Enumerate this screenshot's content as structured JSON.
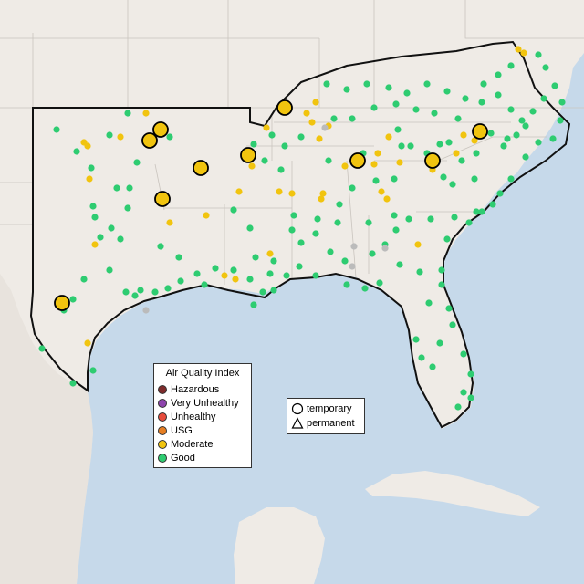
{
  "legend": {
    "title": "Air Quality Index",
    "categories": [
      {
        "label": "Hazardous",
        "color": "#7e2b2b"
      },
      {
        "label": "Very Unhealthy",
        "color": "#8e44ad"
      },
      {
        "label": "Unhealthy",
        "color": "#e74c3c"
      },
      {
        "label": "USG",
        "color": "#e67e22"
      },
      {
        "label": "Moderate",
        "color": "#f1c40f"
      },
      {
        "label": "Good",
        "color": "#2ecc71"
      }
    ]
  },
  "shape_legend": {
    "temporary": "temporary",
    "permanent": "permanent"
  },
  "colors": {
    "water": "#c6d9ea",
    "land": "#efebe6",
    "land_dark": "#e2ddd6",
    "state_border": "#c9c4be",
    "region_border": "#111111",
    "inactive": "#bbbbbb"
  },
  "map_icons": [
    "temporary-circle-icon",
    "permanent-triangle-icon"
  ]
}
